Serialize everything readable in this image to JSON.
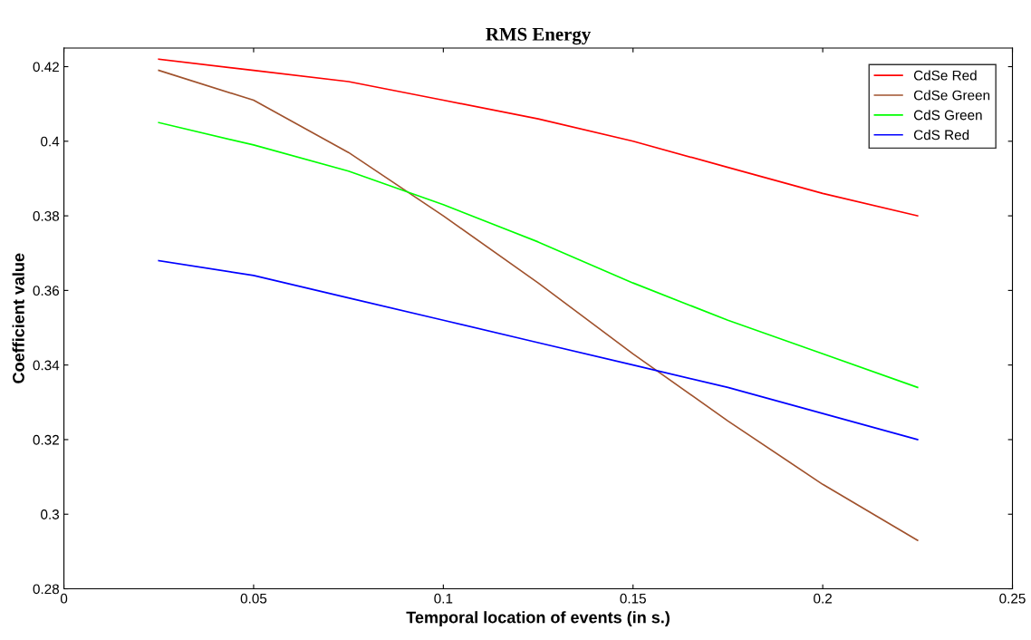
{
  "chart_data": {
    "type": "line",
    "title": "RMS Energy",
    "xlabel": "Temporal location of events (in s.)",
    "ylabel": "Coefficient value",
    "x": [
      0.025,
      0.05,
      0.075,
      0.1,
      0.125,
      0.15,
      0.175,
      0.2,
      0.225
    ],
    "series": [
      {
        "name": "CdSe Red",
        "color": "#ff0000",
        "values": [
          0.422,
          0.419,
          0.416,
          0.411,
          0.406,
          0.4,
          0.393,
          0.386,
          0.38
        ]
      },
      {
        "name": "CdSe Green",
        "color": "#a0522d",
        "values": [
          0.419,
          0.411,
          0.397,
          0.38,
          0.362,
          0.343,
          0.325,
          0.308,
          0.293
        ]
      },
      {
        "name": "CdS Green",
        "color": "#00ff00",
        "values": [
          0.405,
          0.399,
          0.392,
          0.383,
          0.373,
          0.362,
          0.352,
          0.343,
          0.334
        ]
      },
      {
        "name": "CdS Red",
        "color": "#0000ff",
        "values": [
          0.368,
          0.364,
          0.358,
          0.352,
          0.346,
          0.34,
          0.334,
          0.327,
          0.32
        ]
      }
    ],
    "xlim": [
      0,
      0.25
    ],
    "xticks": [
      0,
      0.05,
      0.1,
      0.15,
      0.2,
      0.25
    ],
    "ylim": [
      0.28,
      0.425
    ],
    "yticks": [
      0.28,
      0.3,
      0.32,
      0.34,
      0.36,
      0.38,
      0.4,
      0.42
    ],
    "grid": false,
    "legend": "top right",
    "marker": "none",
    "line_style": "solid"
  }
}
